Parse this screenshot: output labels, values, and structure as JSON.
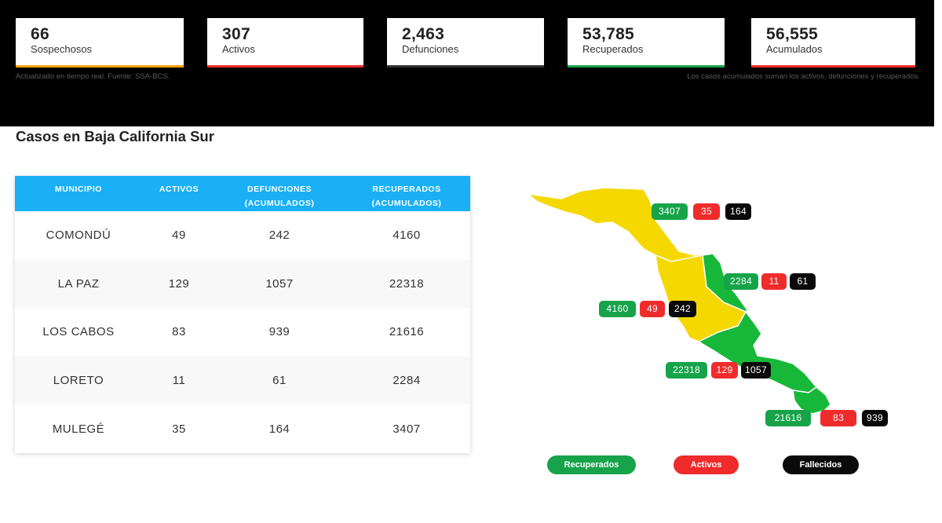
{
  "summary": [
    {
      "value": "66",
      "label": "Sospechosos",
      "color": "#f4a300"
    },
    {
      "value": "307",
      "label": "Activos",
      "color": "#ef2b2b"
    },
    {
      "value": "2,463",
      "label": "Defunciones",
      "color": "#333333"
    },
    {
      "value": "53,785",
      "label": "Recuperados",
      "color": "#17a34a"
    },
    {
      "value": "56,555",
      "label": "Acumulados",
      "color": "#ef2b2b"
    }
  ],
  "note_left": "Actualizado en tiempo real. Fuente: SSA-BCS.",
  "note_right": "Los casos acumulados suman los activos, defunciones y recuperados.",
  "section_title": "Casos en Baja California Sur",
  "table": {
    "headers": [
      "MUNICIPIO",
      "ACTIVOS",
      "DEFUNCIONES (ACUMULADOS)",
      "RECUPERADOS (ACUMULADOS)"
    ],
    "rows": [
      [
        "COMONDÚ",
        "49",
        "242",
        "4160"
      ],
      [
        "LA PAZ",
        "129",
        "1057",
        "22318"
      ],
      [
        "LOS CABOS",
        "83",
        "939",
        "21616"
      ],
      [
        "LORETO",
        "11",
        "61",
        "2284"
      ],
      [
        "MULEGÉ",
        "35",
        "164",
        "3407"
      ]
    ]
  },
  "map_badges": [
    {
      "recuperados": "3407",
      "activos": "35",
      "fallecidos": "164"
    },
    {
      "recuperados": "2284",
      "activos": "11",
      "fallecidos": "61"
    },
    {
      "recuperados": "4160",
      "activos": "49",
      "fallecidos": "242"
    },
    {
      "recuperados": "22318",
      "activos": "129",
      "fallecidos": "1057"
    },
    {
      "recuperados": "21616",
      "activos": "83",
      "fallecidos": "939"
    }
  ],
  "legend": {
    "recuperados": "Recuperados",
    "activos": "Activos",
    "fallecidos": "Fallecidos"
  },
  "colors": {
    "header": "#1ab0f5",
    "yellow": "#f5d800",
    "green": "#17b83a",
    "red": "#ef2b2b",
    "black": "#0a0a0a"
  }
}
